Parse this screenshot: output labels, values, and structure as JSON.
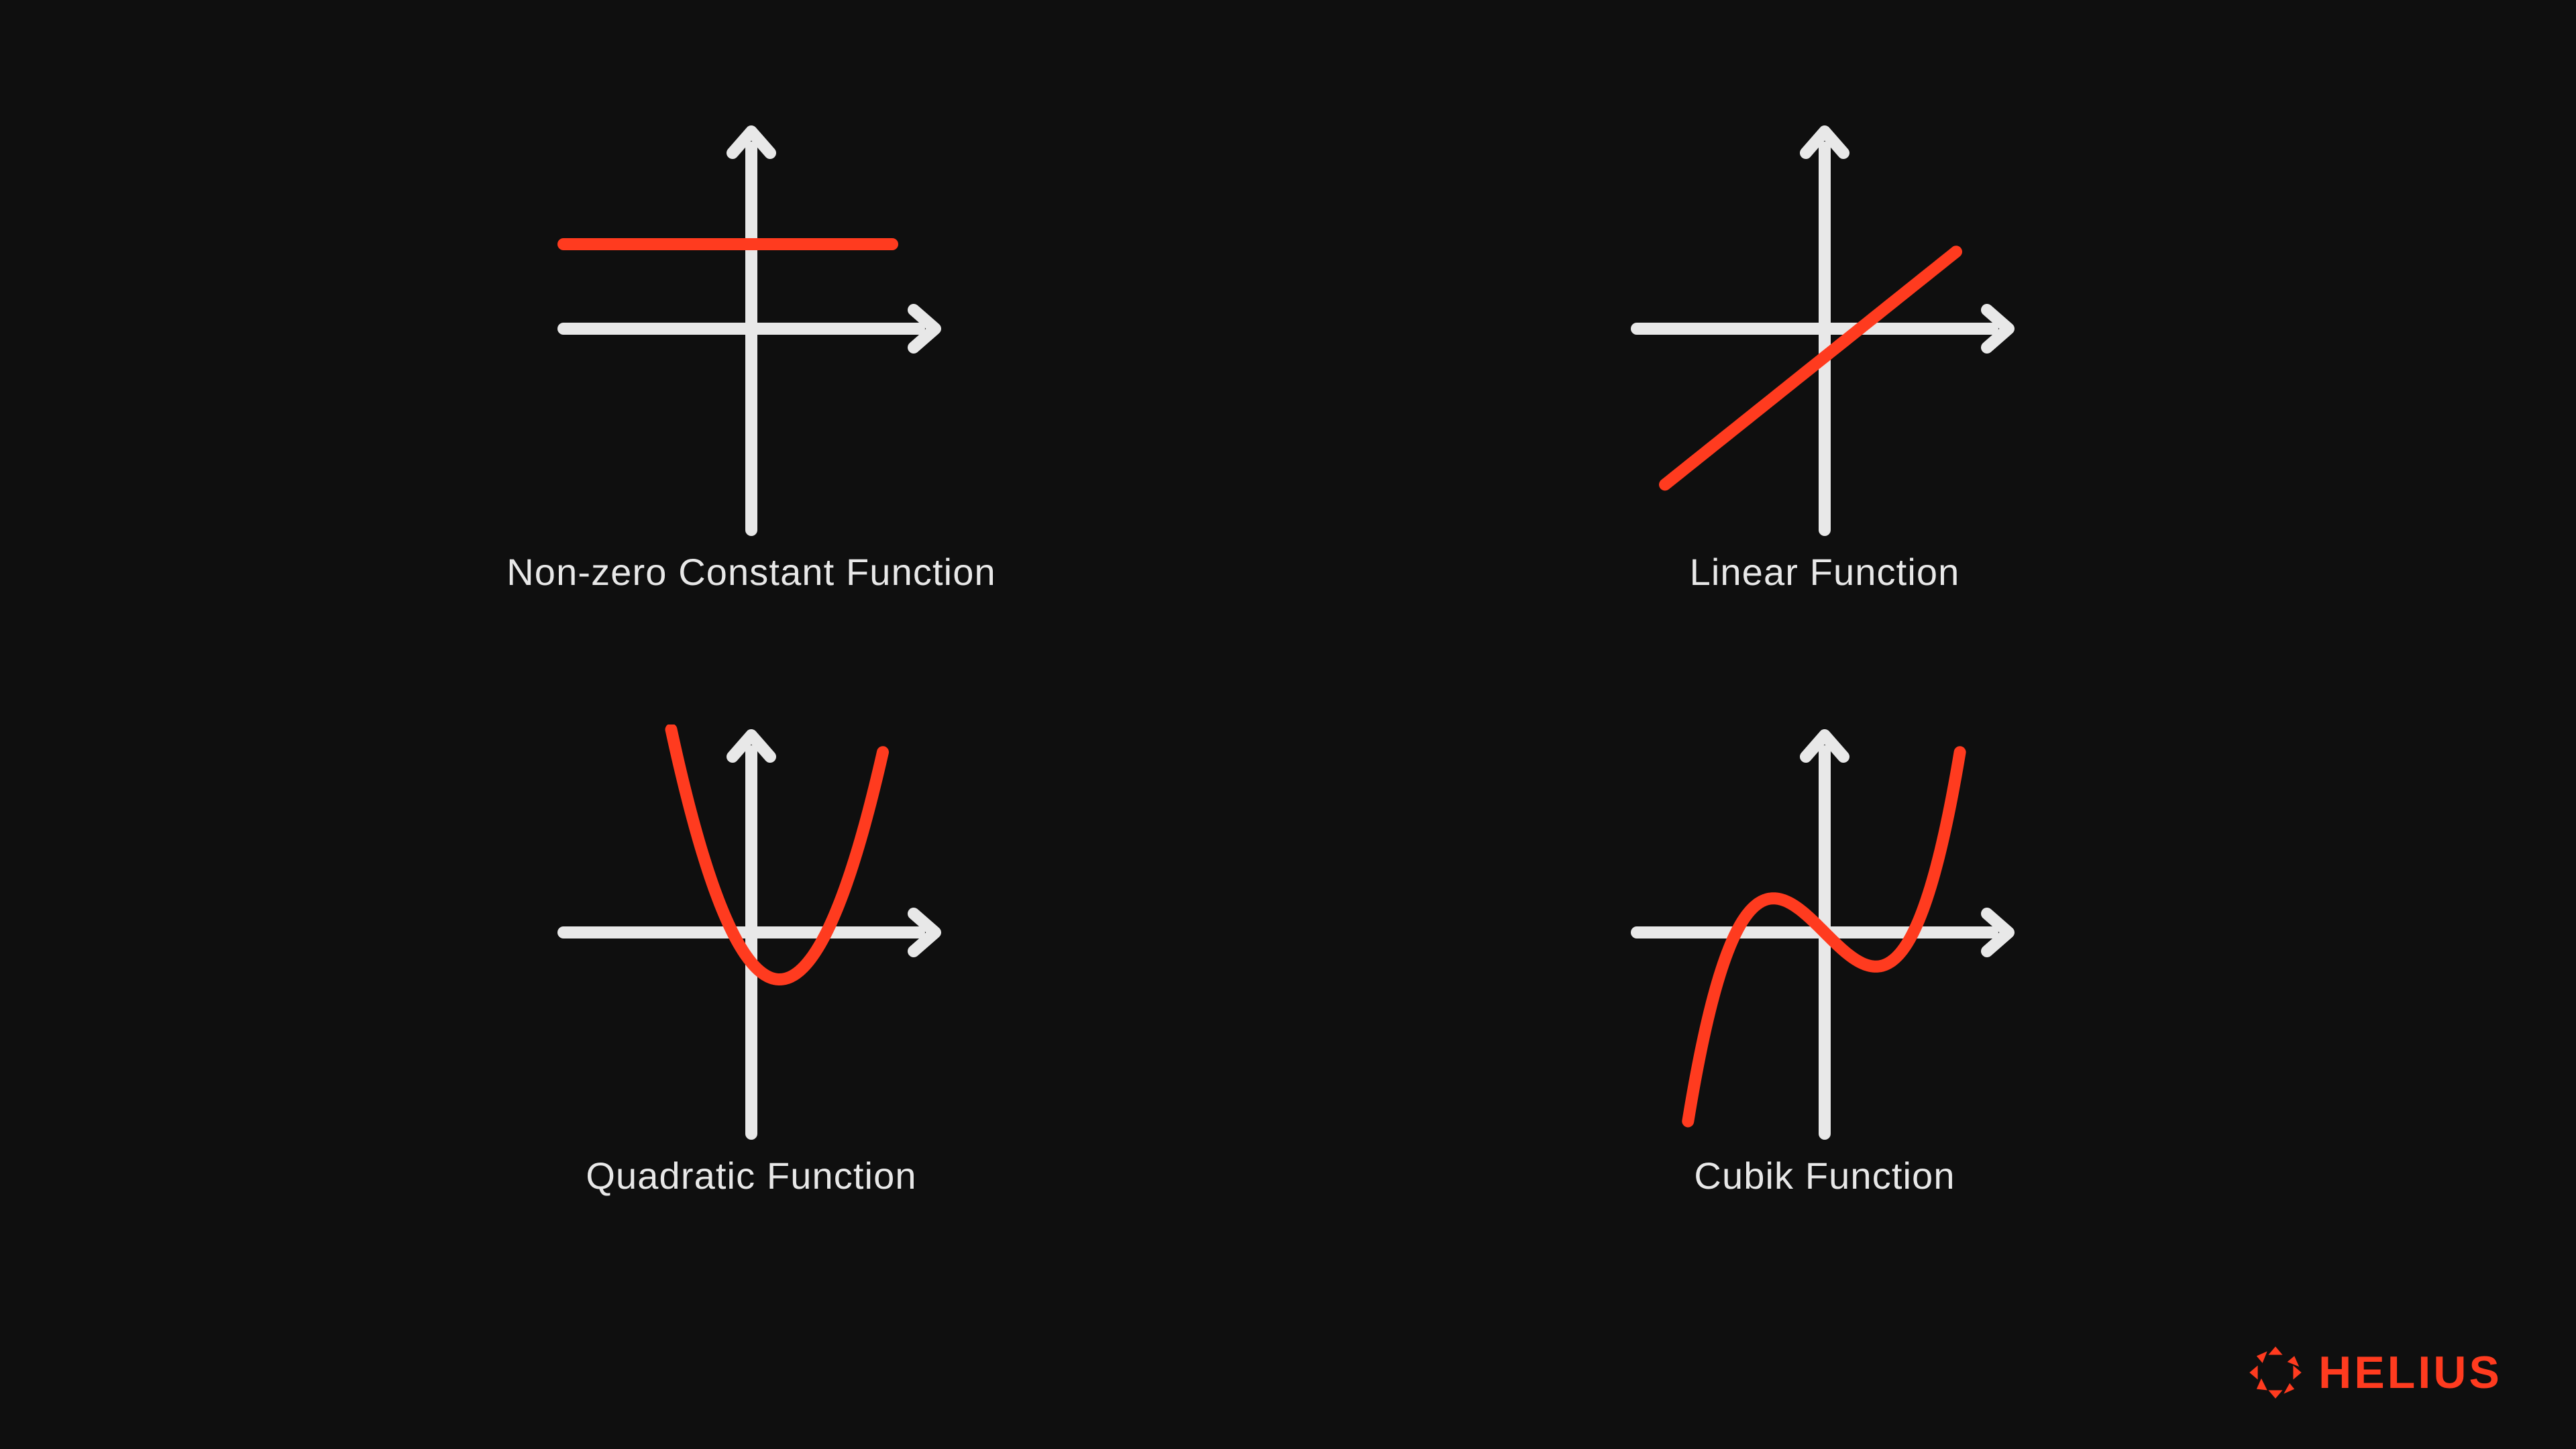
{
  "background_color": "#0f0f0f",
  "axis_color": "#e8e8e8",
  "axis_stroke_width": 18,
  "curve_color": "#ff3b1f",
  "curve_stroke_width": 18,
  "label_color": "#e8e8e8",
  "label_fontsize": 56,
  "brand": {
    "name": "HELIUS",
    "color": "#ff3b1f",
    "fontsize": 68
  },
  "charts": [
    {
      "id": "constant",
      "label": "Non-zero Constant Function",
      "type": "constant",
      "y": 0.45
    },
    {
      "id": "linear",
      "label": "Linear Function",
      "type": "linear",
      "slope": 0.8,
      "intercept": -0.15
    },
    {
      "id": "quadratic",
      "label": "Quadratic Function",
      "type": "quadratic",
      "vertex_x": 0.15,
      "vertex_y": -0.25,
      "a": 4.0
    },
    {
      "id": "cubic",
      "label": "Cubik Function",
      "type": "cubic",
      "a": 4.5,
      "b": 0.0,
      "c": -1.0,
      "d": 0.0
    }
  ]
}
